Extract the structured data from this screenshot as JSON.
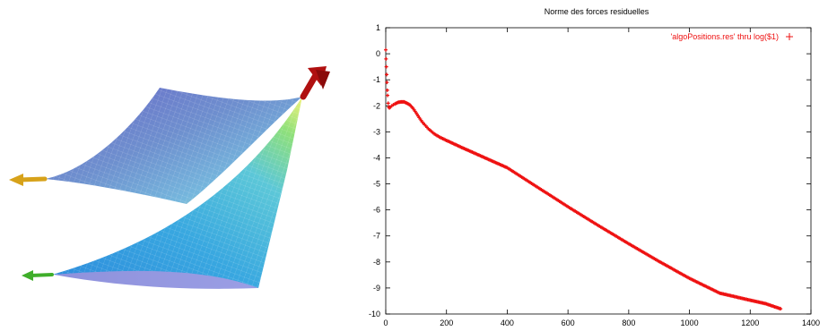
{
  "colors": {
    "series": "#ee1111",
    "axis": "#000000",
    "mesh_top_a": "#6d6dc8",
    "mesh_top_b": "#7fb3d8",
    "mesh_bottom_a": "#1e78d6",
    "mesh_bottom_b": "#7cc6ea",
    "arrow_red": "#b01010",
    "arrow_yellow": "#d7a21a",
    "arrow_green": "#3fae2a"
  },
  "left_panel": {
    "icons": [
      "red-arrow-icon",
      "yellow-arrow-icon",
      "green-arrow-icon"
    ]
  },
  "chart_data": {
    "type": "scatter",
    "title": "Norme des forces residuelles",
    "xlabel": "",
    "ylabel": "",
    "xlim": [
      0,
      1400
    ],
    "ylim": [
      -10,
      1
    ],
    "xticks": [
      0,
      200,
      400,
      600,
      800,
      1000,
      1200,
      1400
    ],
    "yticks": [
      1,
      0,
      -1,
      -2,
      -3,
      -4,
      -5,
      -6,
      -7,
      -8,
      -9,
      -10
    ],
    "legend_position": "top-right",
    "grid": false,
    "series": [
      {
        "name": "'algoPositions.res' thru log($1)",
        "marker": "+",
        "x": [
          0,
          1,
          2,
          3,
          4,
          5,
          6,
          8,
          10,
          12,
          15,
          20,
          25,
          30,
          40,
          50,
          60,
          70,
          80,
          90,
          100,
          110,
          120,
          140,
          160,
          180,
          200,
          250,
          300,
          350,
          400,
          500,
          600,
          700,
          800,
          900,
          1000,
          1100,
          1200,
          1250,
          1300
        ],
        "y": [
          0.15,
          -0.2,
          -0.5,
          -0.8,
          -1.1,
          -1.4,
          -1.6,
          -1.9,
          -2.05,
          -2.08,
          -2.05,
          -2.0,
          -1.96,
          -1.93,
          -1.87,
          -1.85,
          -1.85,
          -1.9,
          -1.97,
          -2.1,
          -2.27,
          -2.45,
          -2.62,
          -2.88,
          -3.08,
          -3.22,
          -3.33,
          -3.6,
          -3.86,
          -4.12,
          -4.38,
          -5.13,
          -5.88,
          -6.6,
          -7.3,
          -7.98,
          -8.63,
          -9.2,
          -9.47,
          -9.6,
          -9.8
        ]
      }
    ]
  }
}
